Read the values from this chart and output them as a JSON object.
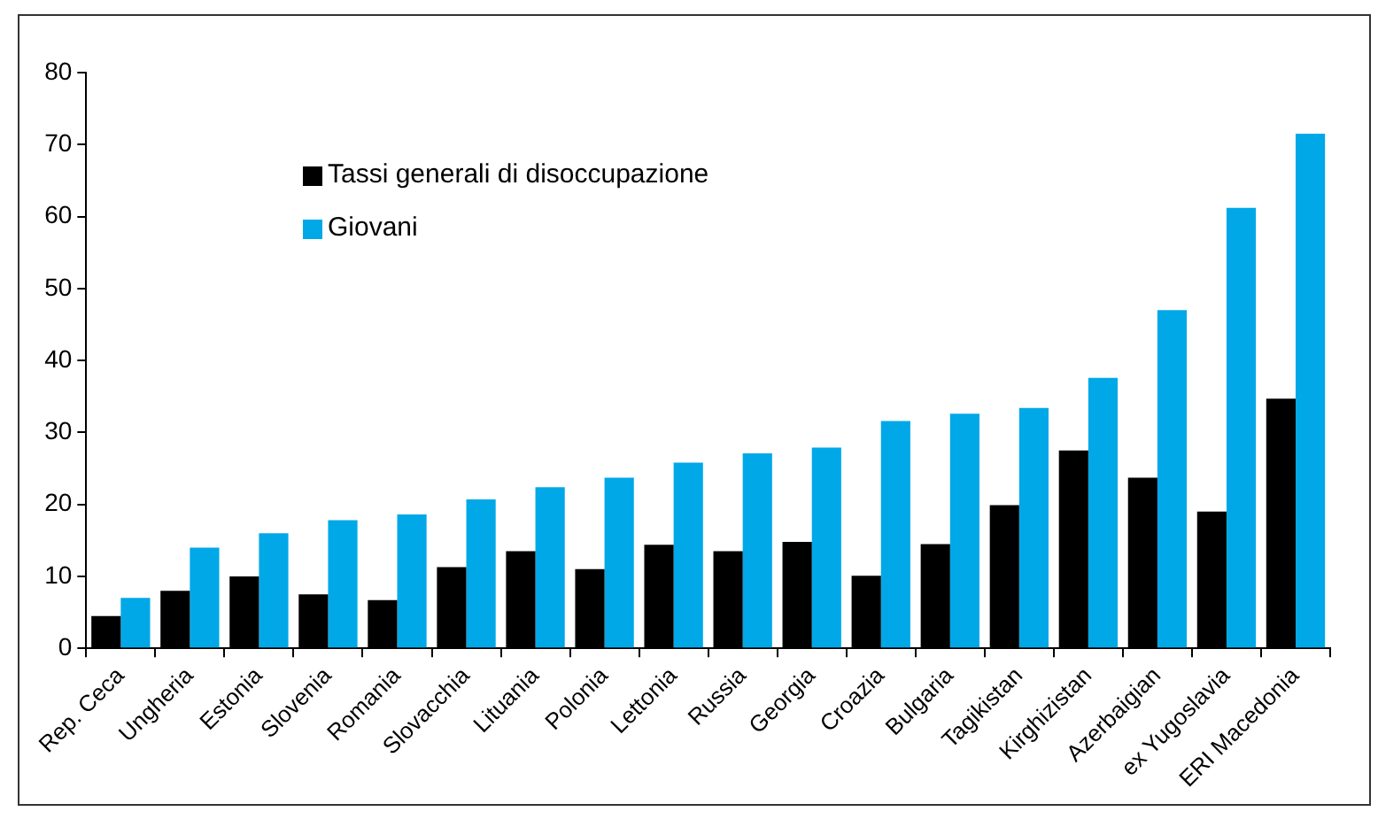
{
  "chart_data": {
    "type": "bar",
    "categories": [
      "Rep. Ceca",
      "Ungheria",
      "Estonia",
      "Slovenia",
      "Romania",
      "Slovacchia",
      "Lituania",
      "Polonia",
      "Lettonia",
      "Russia",
      "Georgia",
      "Croazia",
      "Bulgaria",
      "Tagikistan",
      "Kirghizistan",
      "Azerbaigian",
      "ex Yugoslavia",
      "ERI Macedonia"
    ],
    "series": [
      {
        "name": "Tassi generali di disoccupazione",
        "color": "#000000",
        "values": [
          4.5,
          8,
          10,
          7.5,
          6.7,
          11.3,
          13.5,
          11,
          14.4,
          13.5,
          14.8,
          10.1,
          14.5,
          19.9,
          27.5,
          23.7,
          19,
          34.7
        ]
      },
      {
        "name": "Giovani",
        "color": "#00a8e8",
        "values": [
          7,
          14,
          16,
          17.8,
          18.6,
          20.7,
          22.4,
          23.7,
          25.8,
          27.1,
          27.9,
          31.6,
          32.6,
          33.4,
          37.6,
          47,
          61.2,
          71.5
        ]
      }
    ],
    "ylim": [
      0,
      80
    ],
    "yticks": [
      0,
      10,
      20,
      30,
      40,
      50,
      60,
      70,
      80
    ],
    "grid": false,
    "legend": "top left"
  }
}
